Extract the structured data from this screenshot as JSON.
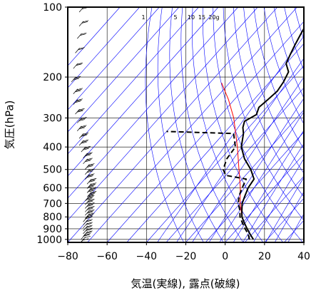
{
  "chart_data": {
    "type": "line",
    "diagram": "skew-t",
    "xlabel": "気温(実線), 露点(破線)",
    "ylabel": "気圧(hPa)",
    "xlim": [
      -80,
      40
    ],
    "ylim": [
      1030,
      100
    ],
    "yscale": "log",
    "x_ticks": [
      "−80",
      "−60",
      "−40",
      "−20",
      "0",
      "20",
      "40"
    ],
    "x_tick_values": [
      -80,
      -60,
      -40,
      -20,
      0,
      20,
      40
    ],
    "y_ticks": [
      "100",
      "200",
      "300",
      "400",
      "500",
      "600",
      "700",
      "800",
      "900",
      "1000"
    ],
    "y_tick_values": [
      100,
      200,
      300,
      400,
      500,
      600,
      700,
      800,
      900,
      1000
    ],
    "mixing_ratio_labels": [
      "1",
      "5",
      "10",
      "15",
      "20g"
    ],
    "mixing_ratio_values": [
      1,
      5,
      10,
      15,
      20
    ],
    "series": [
      {
        "style": "solid",
        "color": "#000000",
        "points": [
          [
            1000,
            13
          ],
          [
            950,
            9
          ],
          [
            900,
            5
          ],
          [
            850,
            1
          ],
          [
            800,
            -3
          ],
          [
            750,
            -6
          ],
          [
            700,
            -9
          ],
          [
            650,
            -11
          ],
          [
            600,
            -13
          ],
          [
            550,
            -14
          ],
          [
            500,
            -20
          ],
          [
            450,
            -28
          ],
          [
            400,
            -35
          ],
          [
            350,
            -40
          ],
          [
            330,
            -43
          ],
          [
            310,
            -45
          ],
          [
            290,
            -42
          ],
          [
            270,
            -44
          ],
          [
            250,
            -43
          ],
          [
            230,
            -42
          ],
          [
            210,
            -43
          ],
          [
            190,
            -45
          ],
          [
            175,
            -50
          ],
          [
            160,
            -52
          ],
          [
            145,
            -54
          ],
          [
            130,
            -56
          ],
          [
            115,
            -58
          ],
          [
            100,
            -60
          ]
        ]
      },
      {
        "style": "dashed",
        "color": "#000000",
        "points": [
          [
            1000,
            11
          ],
          [
            950,
            8
          ],
          [
            900,
            4
          ],
          [
            850,
            0
          ],
          [
            800,
            -4
          ],
          [
            750,
            -7
          ],
          [
            700,
            -11
          ],
          [
            650,
            -14
          ],
          [
            600,
            -16
          ],
          [
            550,
            -18
          ],
          [
            530,
            -30
          ],
          [
            500,
            -34
          ],
          [
            450,
            -37
          ],
          [
            400,
            -38
          ],
          [
            350,
            -45
          ],
          [
            343,
            -80
          ]
        ]
      },
      {
        "style": "solid",
        "color": "#ff0000",
        "points": [
          [
            1000,
            13
          ],
          [
            950,
            9
          ],
          [
            900,
            5
          ],
          [
            850,
            1
          ],
          [
            800,
            -3
          ],
          [
            700,
            -10
          ],
          [
            600,
            -17
          ],
          [
            500,
            -26
          ],
          [
            400,
            -37
          ],
          [
            300,
            -52
          ],
          [
            250,
            -63
          ],
          [
            212,
            -74
          ]
        ]
      }
    ],
    "wind_barbs": {
      "pressure_levels": [
        1000,
        975,
        950,
        925,
        900,
        875,
        850,
        825,
        800,
        775,
        750,
        725,
        700,
        675,
        650,
        625,
        600,
        575,
        550,
        525,
        500,
        475,
        450,
        425,
        400,
        375,
        350,
        325,
        300,
        275,
        250,
        225,
        200,
        175,
        150,
        130,
        115,
        100
      ],
      "x_positions": [
        -72,
        -71,
        -71,
        -70,
        -70,
        -70,
        -70,
        -70,
        -70,
        -69,
        -69,
        -69,
        -69,
        -69,
        -69,
        -68,
        -68,
        -68,
        -68,
        -69,
        -69,
        -69,
        -70,
        -70,
        -71,
        -72,
        -72,
        -73,
        -73,
        -74,
        -75,
        -75,
        -76,
        -75,
        -74,
        -73,
        -72,
        -72
      ],
      "barb_counts": [
        1,
        1,
        2,
        2,
        2,
        2,
        2,
        2,
        2,
        3,
        3,
        3,
        3,
        3,
        4,
        4,
        4,
        4,
        3,
        3,
        3,
        3,
        3,
        3,
        3,
        3,
        3,
        3,
        3,
        3,
        3,
        3,
        3,
        2,
        2,
        2,
        2,
        2
      ]
    },
    "colors": {
      "grid": "#000000",
      "isotherms": "#0000ff",
      "dry_adiabats": "#0000ff",
      "mixing_ratio": "#0000ff",
      "parcel": "#ff0000"
    }
  }
}
